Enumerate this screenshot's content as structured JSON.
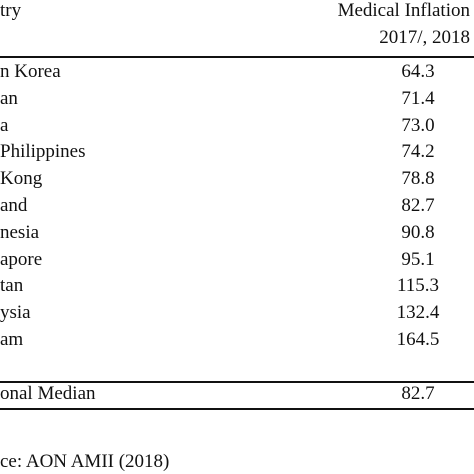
{
  "table": {
    "header": [
      "try",
      "Medical Inflation",
      "2017/, 2018"
    ],
    "rows": [
      [
        "n Korea",
        "64.3"
      ],
      [
        "an",
        "71.4"
      ],
      [
        "a",
        "73.0"
      ],
      [
        "Philippines",
        "74.2"
      ],
      [
        " Kong",
        "78.8"
      ],
      [
        "and",
        "82.7"
      ],
      [
        "nesia",
        "90.8"
      ],
      [
        "apore",
        "95.1"
      ],
      [
        "tan",
        "115.3"
      ],
      [
        "ysia",
        "132.4"
      ],
      [
        "am",
        "164.5"
      ]
    ],
    "median": [
      "onal Median",
      "82.7"
    ]
  },
  "source": "ce: AON AMII (2018)"
}
